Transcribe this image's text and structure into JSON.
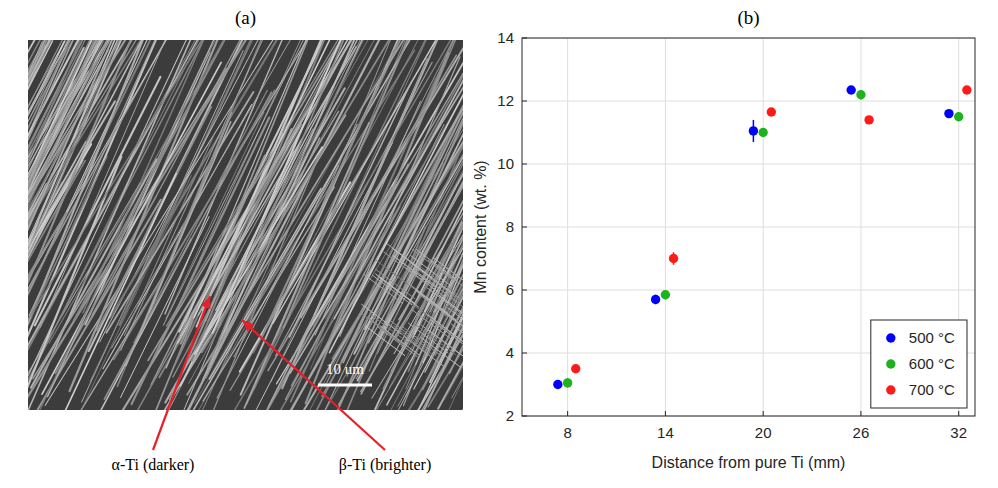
{
  "micrograph": {
    "title": "(a)",
    "scale_bar": "10 um",
    "annotations": [
      "α-Ti (darker)",
      "β-Ti (brighter)"
    ]
  },
  "chart_data": {
    "type": "scatter",
    "title": "(b)",
    "x_label": "Distance from pure Ti (mm)",
    "y_label": "Mn content (wt. %)",
    "xlim": [
      5.2,
      33
    ],
    "xticks": [
      8,
      14,
      20,
      26,
      32
    ],
    "ylim": [
      2,
      14
    ],
    "yticks": [
      2,
      4,
      6,
      8,
      10,
      12,
      14
    ],
    "grid": true,
    "legend": "lower right",
    "marker": "circle",
    "series": [
      {
        "name": "500 °C",
        "color": "#0000ff",
        "x": [
          7.4,
          13.4,
          19.4,
          25.4,
          31.4
        ],
        "values": [
          3.0,
          5.7,
          11.05,
          12.35,
          11.6
        ],
        "errors": [
          0.05,
          0.15,
          0.35,
          0.05,
          0.05
        ]
      },
      {
        "name": "600 °C",
        "color": "#1fb21f",
        "x": [
          8.0,
          14.0,
          20.0,
          26.0,
          32.0
        ],
        "values": [
          3.05,
          5.85,
          11.0,
          12.2,
          11.5
        ],
        "errors": [
          0.15,
          0.15,
          0.1,
          0.15,
          0.1
        ]
      },
      {
        "name": "700 °C",
        "color": "#ff1a1a",
        "x": [
          8.5,
          14.5,
          20.5,
          26.5,
          32.5
        ],
        "values": [
          3.5,
          7.0,
          11.65,
          11.4,
          12.35
        ],
        "errors": [
          0.05,
          0.2,
          0.05,
          0.05,
          0.05
        ]
      }
    ]
  }
}
